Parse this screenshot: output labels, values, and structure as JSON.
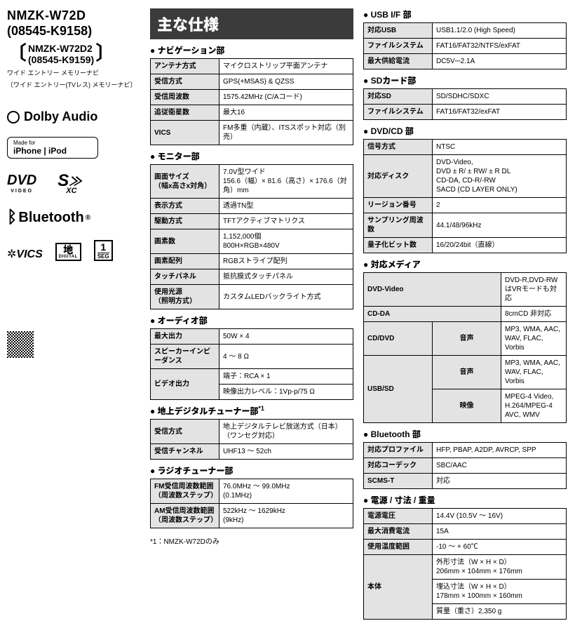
{
  "model": {
    "main1": "NMZK-W72D",
    "main2": "(08545-K9158)",
    "sub1": "NMZK-W72D2",
    "sub2": "(08545-K9159)",
    "subtitle1": "ワイド エントリー メモリーナビ",
    "subtitle2": "〔ワイド エントリー(TVレス) メモリーナビ〕"
  },
  "logos": {
    "dolby": "Dolby Audio",
    "mfi_top": "Made for",
    "mfi": "iPhone | iPod",
    "dvd": "DVD",
    "dvd_sub": "VIDEO",
    "sd_main": "S",
    "sd_sub": "XC",
    "bt": "Bluetooth",
    "vics": "VICS",
    "chi": "地",
    "chi_sub": "DIGITAL",
    "seg_top": "1",
    "seg_bot": "SEG"
  },
  "header": "主な仕様",
  "nav": {
    "title": "ナビゲーション部",
    "rows": [
      [
        "アンテナ方式",
        "マイクロストリップ平面アンテナ"
      ],
      [
        "受信方式",
        "GPS(+MSAS) & QZSS"
      ],
      [
        "受信周波数",
        "1575.42MHz (C/Aコード)"
      ],
      [
        "追従衛星数",
        "最大16"
      ],
      [
        "VICS",
        "FM多重（内蔵）、ITSスポット対応（別売）"
      ]
    ]
  },
  "monitor": {
    "title": "モニター部",
    "rows": [
      [
        "画面サイズ\n（幅x高さx対角）",
        "7.0V型ワイド\n156.6（幅）× 81.6（高さ）× 176.6（対角）mm"
      ],
      [
        "表示方式",
        "透過TN型"
      ],
      [
        "駆動方式",
        "TFTアクティブマトリクス"
      ],
      [
        "画素数",
        "1,152,000個\n800H×RGB×480V"
      ],
      [
        "画素配列",
        "RGBストライプ配列"
      ],
      [
        "タッチパネル",
        "抵抗膜式タッチパネル"
      ],
      [
        "使用光源\n（照明方式）",
        "カスタムLEDバックライト方式"
      ]
    ]
  },
  "audio": {
    "title": "オーディオ部",
    "max_out": [
      "最大出力",
      "50W × 4"
    ],
    "spk": [
      "スピーカーインピーダンス",
      "4 ～ 8 Ω"
    ],
    "video1": [
      "ビデオ出力",
      "端子：RCA × 1"
    ],
    "video2": "映像出力レベル：1Vp-p/75 Ω"
  },
  "dttv": {
    "title": "地上デジタルチューナー部",
    "sup": "*1",
    "rows": [
      [
        "受信方式",
        "地上デジタルテレビ放送方式（日本）（ワンセグ対応）"
      ],
      [
        "受信チャンネル",
        "UHF13 ～ 52ch"
      ]
    ]
  },
  "radio": {
    "title": "ラジオチューナー部",
    "rows": [
      [
        "FM受信周波数範囲\n（周波数ステップ）",
        "76.0MHz ～ 99.0MHz\n(0.1MHz)"
      ],
      [
        "AM受信周波数範囲\n（周波数ステップ）",
        "522kHz ～ 1629kHz\n(9kHz)"
      ]
    ]
  },
  "usb": {
    "title": "USB I/F 部",
    "rows": [
      [
        "対応USB",
        "USB1.1/2.0 (High Speed)"
      ],
      [
        "ファイルシステム",
        "FAT16/FAT32/NTFS/exFAT"
      ],
      [
        "最大供給電流",
        "DC5V⎓2.1A"
      ]
    ]
  },
  "sd": {
    "title": "SDカード部",
    "rows": [
      [
        "対応SD",
        "SD/SDHC/SDXC"
      ],
      [
        "ファイルシステム",
        "FAT16/FAT32/exFAT"
      ]
    ]
  },
  "dvdcd": {
    "title": "DVD/CD 部",
    "rows": [
      [
        "信号方式",
        "NTSC"
      ],
      [
        "対応ディスク",
        "DVD-Video,\nDVD ± R/ ± RW/ ± R DL\nCD-DA, CD-R/-RW\nSACD (CD LAYER ONLY)"
      ],
      [
        "リージョン番号",
        "2"
      ],
      [
        "サンプリング周波数",
        "44.1/48/96kHz"
      ],
      [
        "量子化ビット数",
        "16/20/24bit（直線）"
      ]
    ]
  },
  "media": {
    "title": "対応メディア",
    "dvd": [
      "DVD-Video",
      "DVD-R,DVD-RWはVRモードも対応"
    ],
    "cdda": [
      "CD-DA",
      "8cmCD 非対応"
    ],
    "cddvd_l": "CD/DVD",
    "cddvd_m": "音声",
    "cddvd_v": "MP3, WMA, AAC, WAV, FLAC, Vorbis",
    "usb_l": "USB/SD",
    "usb_a_m": "音声",
    "usb_a_v": "MP3, WMA, AAC, WAV, FLAC, Vorbis",
    "usb_v_m": "映像",
    "usb_v_v": "MPEG-4 Video,\nH.264/MPEG-4 AVC, WMV"
  },
  "bt": {
    "title": "Bluetooth 部",
    "rows": [
      [
        "対応プロファイル",
        "HFP, PBAP, A2DP, AVRCP, SPP"
      ],
      [
        "対応コーデック",
        "SBC/AAC"
      ],
      [
        "SCMS-T",
        "対応"
      ]
    ]
  },
  "power": {
    "title": "電源 / 寸法 / 重量",
    "rows": [
      [
        "電源電圧",
        "14.4V (10.5V ～ 16V)"
      ],
      [
        "最大消費電流",
        "15A"
      ],
      [
        "使用温度範囲",
        "-10 ～ + 60℃"
      ]
    ],
    "body_l": "本体",
    "body1": "外形寸法（W × H × D）\n206mm × 104mm × 176mm",
    "body2": "埋込寸法（W × H × D）\n178mm × 100mm × 160mm",
    "body3": "質量（重さ）2,350 g"
  },
  "footnote": "*1：NMZK-W72Dのみ"
}
